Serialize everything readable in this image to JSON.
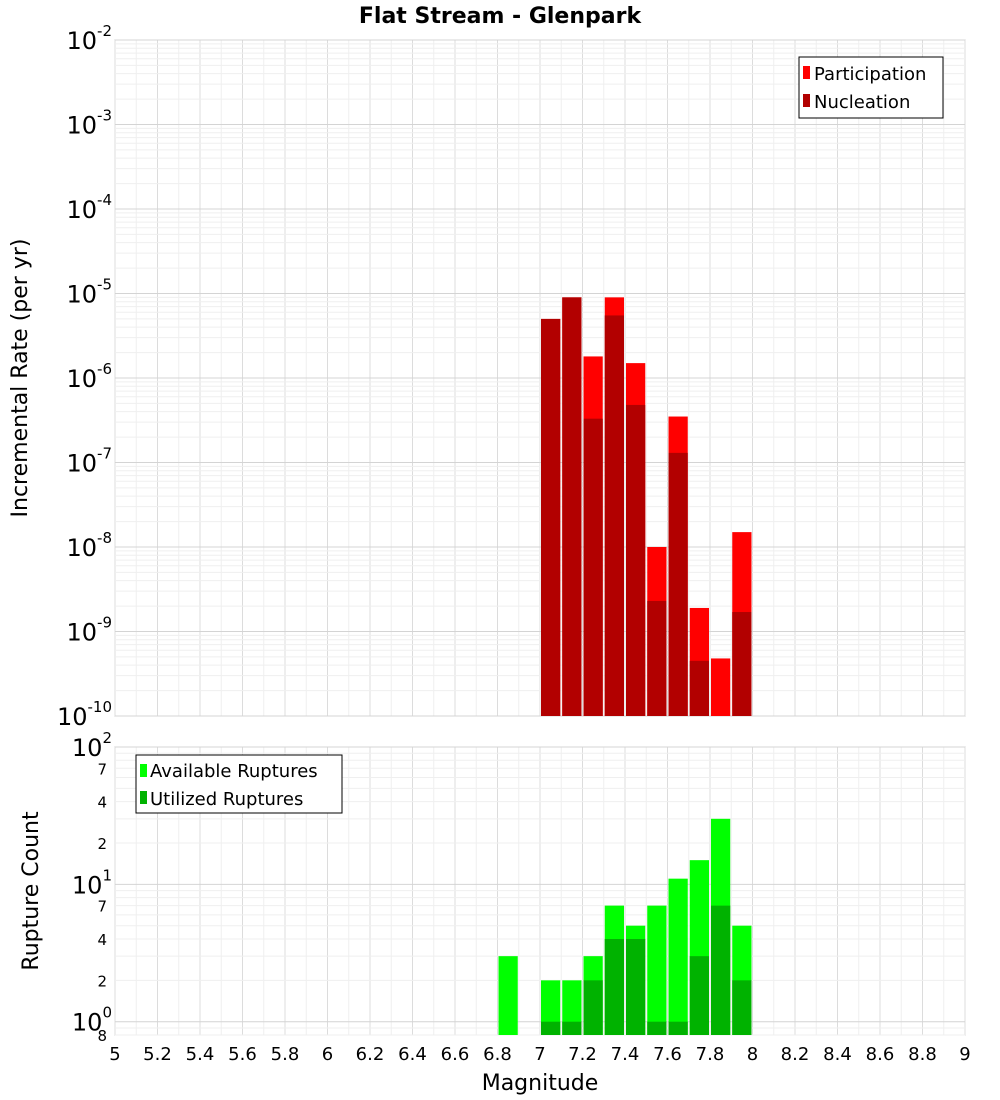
{
  "chart_data": [
    {
      "type": "bar",
      "title": "Flat Stream - Glenpark",
      "xlabel": "",
      "ylabel": "Incremental Rate (per yr)",
      "xlim": [
        5,
        9
      ],
      "ylim": [
        1e-10,
        0.01
      ],
      "y_scale": "log",
      "y_tick_labels": [
        {
          "base": "10",
          "exp": "-10",
          "value": 1e-10
        },
        {
          "base": "10",
          "exp": "-9",
          "value": 1e-09
        },
        {
          "base": "10",
          "exp": "-8",
          "value": 1e-08
        },
        {
          "base": "10",
          "exp": "-7",
          "value": 1e-07
        },
        {
          "base": "10",
          "exp": "-6",
          "value": 1e-06
        },
        {
          "base": "10",
          "exp": "-5",
          "value": 1e-05
        },
        {
          "base": "10",
          "exp": "-4",
          "value": 0.0001
        },
        {
          "base": "10",
          "exp": "-3",
          "value": 0.001
        },
        {
          "base": "10",
          "exp": "-2",
          "value": 0.01
        }
      ],
      "grid": true,
      "legend_position": "top-right",
      "categories": [
        7.05,
        7.15,
        7.25,
        7.35,
        7.45,
        7.55,
        7.65,
        7.75,
        7.85,
        7.95
      ],
      "series": [
        {
          "name": "Participation",
          "color": "#ff0000",
          "values": [
            5e-06,
            9e-06,
            1.8e-06,
            9e-06,
            1.5e-06,
            1e-08,
            3.5e-07,
            1.9e-09,
            4.8e-10,
            1.5e-08
          ]
        },
        {
          "name": "Nucleation",
          "color": "#b20000",
          "values": [
            5e-06,
            9e-06,
            3.3e-07,
            5.5e-06,
            4.8e-07,
            2.3e-09,
            1.3e-07,
            4.5e-10,
            null,
            1.7e-09
          ]
        }
      ]
    },
    {
      "type": "bar",
      "title": "",
      "xlabel": "Magnitude",
      "ylabel": "Rupture Count",
      "xlim": [
        5,
        9
      ],
      "x_ticks": [
        "5",
        "5.2",
        "5.4",
        "5.6",
        "5.8",
        "6",
        "6.2",
        "6.4",
        "6.6",
        "6.8",
        "7",
        "7.2",
        "7.4",
        "7.6",
        "7.8",
        "8",
        "8.2",
        "8.4",
        "8.6",
        "8.8",
        "9"
      ],
      "ylim": [
        0.8,
        100
      ],
      "y_scale": "log",
      "y_tick_labels": [
        {
          "base": "10",
          "exp": "2",
          "value": 100
        },
        {
          "base": "10",
          "exp": "1",
          "value": 10
        },
        {
          "base": "10",
          "exp": "0",
          "value": 1
        }
      ],
      "y_minor_labels": [
        {
          "label": "7",
          "value": 70
        },
        {
          "label": "4",
          "value": 40
        },
        {
          "label": "2",
          "value": 20
        },
        {
          "label": "7",
          "value": 7
        },
        {
          "label": "4",
          "value": 4
        },
        {
          "label": "2",
          "value": 2
        },
        {
          "label": "8",
          "value": 0.8
        }
      ],
      "grid": true,
      "legend_position": "top-left",
      "categories": [
        6.85,
        7.05,
        7.15,
        7.25,
        7.35,
        7.45,
        7.55,
        7.65,
        7.75,
        7.85,
        7.95
      ],
      "series": [
        {
          "name": "Available Ruptures",
          "color": "#00ff00",
          "values": [
            3,
            2,
            2,
            3,
            7,
            5,
            7,
            11,
            15,
            30,
            5
          ]
        },
        {
          "name": "Utilized Ruptures",
          "color": "#00b200",
          "values": [
            null,
            1,
            1,
            2,
            4,
            4,
            1,
            1,
            3,
            7,
            2
          ]
        }
      ]
    }
  ]
}
